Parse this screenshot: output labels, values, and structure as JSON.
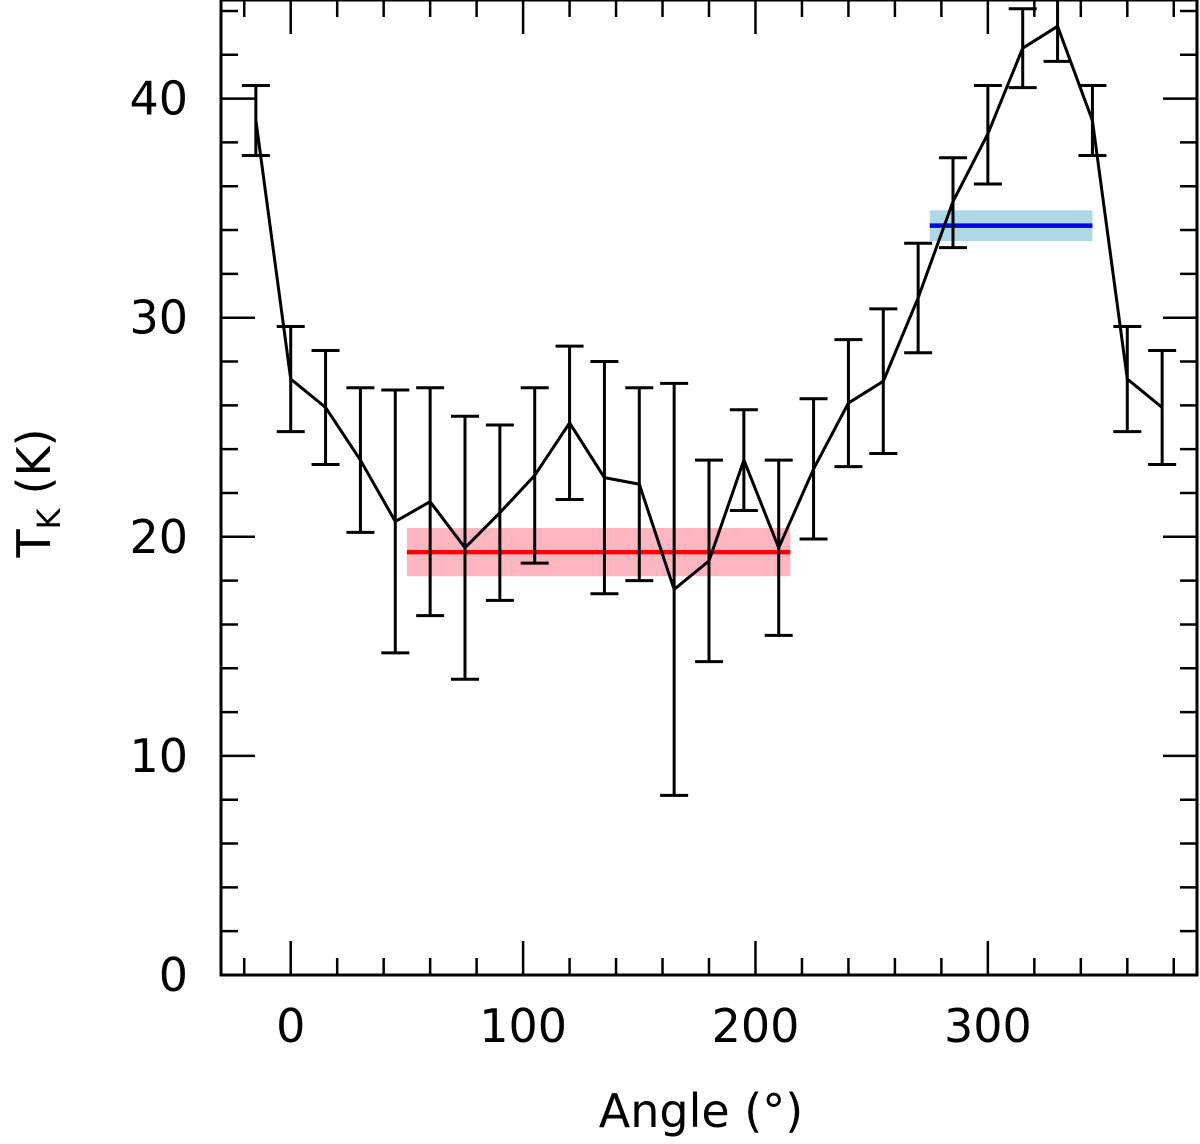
{
  "chart_data": {
    "type": "line",
    "title": "",
    "xlabel": "Angle (°)",
    "ylabel_main": "T",
    "ylabel_sub": "K",
    "ylabel_unit": "(K)",
    "xlim": [
      -30,
      390
    ],
    "ylim": [
      0,
      44.5
    ],
    "x_ticks": [
      0,
      100,
      200,
      300
    ],
    "x_tick_labels": [
      "0",
      "100",
      "200",
      "300"
    ],
    "x_minor_step": 20,
    "y_ticks": [
      0,
      10,
      20,
      30,
      40
    ],
    "y_tick_labels": [
      "0",
      "10",
      "20",
      "30",
      "40"
    ],
    "y_minor_step": 2,
    "grid": false,
    "legend": "none",
    "series": [
      {
        "x": [
          -15,
          0,
          15,
          30,
          45,
          60,
          75,
          90,
          105,
          120,
          135,
          150,
          165,
          180,
          195,
          210,
          225,
          240,
          255,
          270,
          285,
          300,
          315,
          330,
          345,
          360,
          375
        ],
        "y": [
          39.0,
          27.2,
          25.9,
          23.5,
          20.7,
          21.6,
          19.5,
          21.1,
          22.8,
          25.2,
          22.7,
          22.4,
          17.6,
          18.9,
          23.5,
          19.5,
          23.1,
          26.1,
          27.1,
          30.9,
          35.3,
          38.4,
          42.3,
          43.3,
          39.0,
          27.2,
          25.9
        ],
        "err_low": [
          37.4,
          24.8,
          23.3,
          20.2,
          14.7,
          16.4,
          13.5,
          17.1,
          18.8,
          21.7,
          17.4,
          18.0,
          8.2,
          14.3,
          21.2,
          15.5,
          19.9,
          23.2,
          23.8,
          28.4,
          33.2,
          36.1,
          40.5,
          41.7,
          37.4,
          24.8,
          23.3
        ],
        "err_high": [
          40.6,
          29.6,
          28.5,
          26.8,
          26.7,
          26.8,
          25.5,
          25.1,
          26.8,
          28.7,
          28.0,
          26.8,
          27.0,
          23.5,
          25.8,
          23.5,
          26.3,
          29.0,
          30.4,
          33.4,
          37.3,
          40.6,
          44.1,
          44.9,
          40.6,
          29.6,
          28.5
        ],
        "color": "#000000"
      }
    ],
    "bands": [
      {
        "x_start": 50,
        "x_end": 215,
        "value": 19.3,
        "band_low": 18.2,
        "band_high": 20.4,
        "line_color": "#ff0000",
        "band_color": "#ffb6c1"
      },
      {
        "x_start": 275,
        "x_end": 345,
        "value": 34.2,
        "band_low": 33.5,
        "band_high": 34.9,
        "line_color": "#0000ee",
        "band_color": "#add8e6"
      }
    ]
  }
}
